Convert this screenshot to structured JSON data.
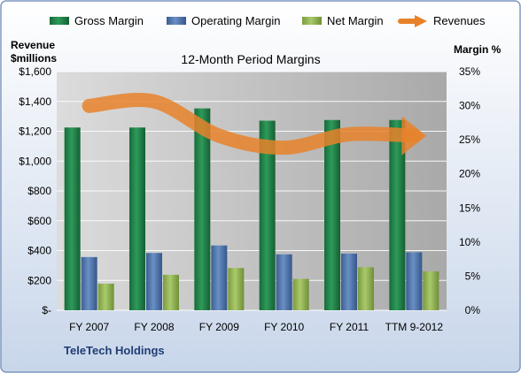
{
  "chart_data": {
    "type": "bar",
    "title": "12-Month Period Margins",
    "company": "TeleTech Holdings",
    "y_left_label_line1": "Revenue",
    "y_left_label_line2": "$millions",
    "y_right_label": "Margin %",
    "categories": [
      "FY 2007",
      "FY 2008",
      "FY 2009",
      "FY 2010",
      "FY 2011",
      "TTM 9-2012"
    ],
    "y_left": {
      "min": 0,
      "max": 1600,
      "step": 200,
      "ticks": [
        "$-",
        "$200",
        "$400",
        "$600",
        "$800",
        "$1,000",
        "$1,200",
        "$1,400",
        "$1,600"
      ]
    },
    "y_right": {
      "min": 0,
      "max": 35,
      "step": 5,
      "ticks": [
        "0%",
        "5%",
        "10%",
        "15%",
        "20%",
        "25%",
        "30%",
        "35%"
      ]
    },
    "series": [
      {
        "name": "Gross Margin",
        "axis": "right",
        "color": "#1e7a45",
        "values": [
          26.8,
          26.8,
          29.6,
          27.8,
          27.9,
          27.9
        ]
      },
      {
        "name": "Operating Margin",
        "axis": "right",
        "color": "#4a6fa5",
        "values": [
          7.8,
          8.4,
          9.5,
          8.2,
          8.3,
          8.5
        ]
      },
      {
        "name": "Net Margin",
        "axis": "right",
        "color": "#8fb152",
        "values": [
          3.9,
          5.2,
          6.2,
          4.6,
          6.3,
          5.7
        ]
      },
      {
        "name": "Revenues",
        "axis": "left",
        "type": "line",
        "color": "#e8822a",
        "values": [
          1370,
          1400,
          1170,
          1090,
          1180,
          1170
        ]
      }
    ],
    "legend_position": "top",
    "grid": true
  }
}
